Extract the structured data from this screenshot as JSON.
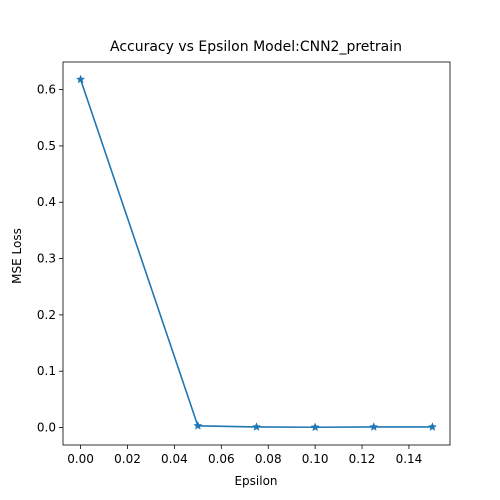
{
  "chart_data": {
    "type": "line",
    "title": "Accuracy vs Epsilon Model:CNN2_pretrain",
    "xlabel": "Epsilon",
    "ylabel": "MSE Loss",
    "xlim": [
      -0.0075,
      0.1575
    ],
    "ylim": [
      -0.031,
      0.649
    ],
    "xticks": [
      "0.00",
      "0.02",
      "0.04",
      "0.06",
      "0.08",
      "0.10",
      "0.12",
      "0.14"
    ],
    "yticks": [
      "0.0",
      "0.1",
      "0.2",
      "0.3",
      "0.4",
      "0.5",
      "0.6"
    ],
    "grid": false,
    "marker": "star",
    "color": "#1f77b4",
    "series": [
      {
        "x": [
          0.0,
          0.05,
          0.075,
          0.1,
          0.125,
          0.15
        ],
        "y": [
          0.618,
          0.003,
          0.001,
          0.0005,
          0.001,
          0.001
        ]
      }
    ]
  }
}
